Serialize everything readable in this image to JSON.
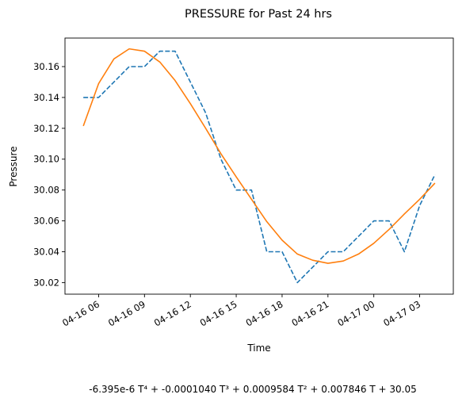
{
  "chart_data": {
    "type": "line",
    "title": "PRESSURE for Past 24 hrs",
    "xlabel": "Time",
    "ylabel": "Pressure",
    "x_ticks": [
      {
        "x": 6,
        "label": "04-16 06"
      },
      {
        "x": 9,
        "label": "04-16 09"
      },
      {
        "x": 12,
        "label": "04-16 12"
      },
      {
        "x": 15,
        "label": "04-16 15"
      },
      {
        "x": 18,
        "label": "04-16 18"
      },
      {
        "x": 21,
        "label": "04-16 21"
      },
      {
        "x": 24,
        "label": "04-17 00"
      },
      {
        "x": 27,
        "label": "04-17 03"
      }
    ],
    "y_ticks": [
      {
        "y": 30.02,
        "label": "30.02"
      },
      {
        "y": 30.04,
        "label": "30.04"
      },
      {
        "y": 30.06,
        "label": "30.06"
      },
      {
        "y": 30.08,
        "label": "30.08"
      },
      {
        "y": 30.1,
        "label": "30.10"
      },
      {
        "y": 30.12,
        "label": "30.12"
      },
      {
        "y": 30.14,
        "label": "30.14"
      },
      {
        "y": 30.16,
        "label": "30.16"
      }
    ],
    "xlim": [
      3.8,
      29.2
    ],
    "ylim": [
      30.0125,
      30.1785
    ],
    "grid": false,
    "series": [
      {
        "name": "",
        "style": "dashed",
        "color": "#1f77b4",
        "points": [
          [
            5.0,
            30.14
          ],
          [
            6.0,
            30.14
          ],
          [
            7.0,
            30.15
          ],
          [
            8.0,
            30.16
          ],
          [
            9.0,
            30.16
          ],
          [
            10.0,
            30.17
          ],
          [
            11.0,
            30.17
          ],
          [
            12.0,
            30.15
          ],
          [
            13.0,
            30.13
          ],
          [
            14.0,
            30.1
          ],
          [
            15.0,
            30.08
          ],
          [
            16.0,
            30.08
          ],
          [
            17.0,
            30.04
          ],
          [
            18.0,
            30.04
          ],
          [
            19.0,
            30.02
          ],
          [
            20.0,
            30.03
          ],
          [
            21.0,
            30.04
          ],
          [
            22.0,
            30.04
          ],
          [
            23.0,
            30.05
          ],
          [
            24.0,
            30.06
          ],
          [
            25.0,
            30.06
          ],
          [
            26.0,
            30.04
          ],
          [
            27.0,
            30.07
          ],
          [
            28.0,
            30.09
          ]
        ]
      },
      {
        "name": "",
        "style": "solid",
        "color": "#ff7f0e",
        "points": [
          [
            5.0,
            30.1215
          ],
          [
            6.0,
            30.149
          ],
          [
            7.0,
            30.165
          ],
          [
            8.0,
            30.1715
          ],
          [
            9.0,
            30.17
          ],
          [
            10.0,
            30.163
          ],
          [
            11.0,
            30.151
          ],
          [
            12.0,
            30.136
          ],
          [
            13.0,
            30.12
          ],
          [
            14.0,
            30.1035
          ],
          [
            15.0,
            30.0885
          ],
          [
            16.0,
            30.074
          ],
          [
            17.0,
            30.0595
          ],
          [
            18.0,
            30.0475
          ],
          [
            19.0,
            30.0385
          ],
          [
            20.0,
            30.0345
          ],
          [
            21.0,
            30.0325
          ],
          [
            22.0,
            30.034
          ],
          [
            23.0,
            30.0385
          ],
          [
            24.0,
            30.0455
          ],
          [
            25.0,
            30.0545
          ],
          [
            26.0,
            30.0645
          ],
          [
            27.0,
            30.074
          ],
          [
            28.0,
            30.0845
          ]
        ]
      }
    ],
    "annotation": "-6.395e-6 T⁴ + -0.0001040 T³ + 0.0009584 T² + 0.007846 T + 30.05"
  }
}
